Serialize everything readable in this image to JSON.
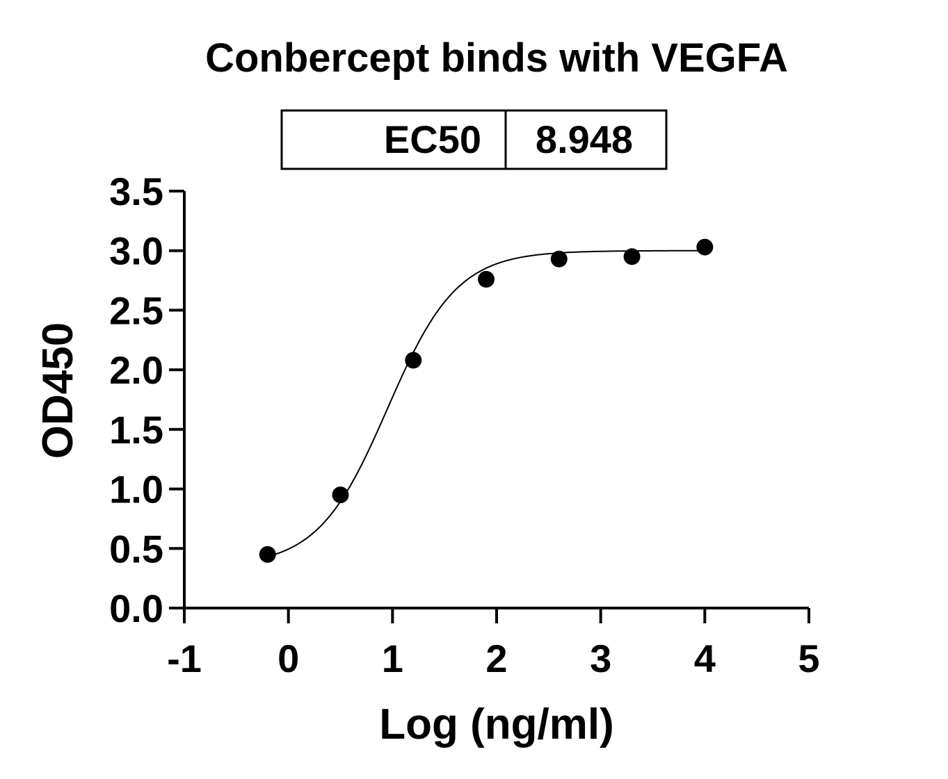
{
  "chart_data": {
    "type": "scatter",
    "title": "Conbercept binds with VEGFA",
    "xlabel": "Log (ng/ml)",
    "ylabel": "OD450",
    "xlim": [
      -1,
      5
    ],
    "ylim": [
      0,
      3.5
    ],
    "xticks": [
      "-1",
      "0",
      "1",
      "2",
      "3",
      "4",
      "5"
    ],
    "yticks": [
      "0.0",
      "0.5",
      "1.0",
      "1.5",
      "2.0",
      "2.5",
      "3.0",
      "3.5"
    ],
    "grid": false,
    "stats_table": {
      "label": "EC50",
      "value": "8.948"
    },
    "points": {
      "x": [
        -0.2,
        0.5,
        1.2,
        1.9,
        2.6,
        3.3,
        4.0
      ],
      "y": [
        0.45,
        0.95,
        2.08,
        2.76,
        2.93,
        2.95,
        3.03
      ]
    },
    "fit": {
      "model": "4PL",
      "bottom": 0.35,
      "top": 3.0,
      "logEC50": 0.952,
      "hill": 1.3,
      "range": [
        -0.2,
        4.0
      ]
    },
    "colors": {
      "marker": "#000000",
      "line": "#000000"
    }
  }
}
